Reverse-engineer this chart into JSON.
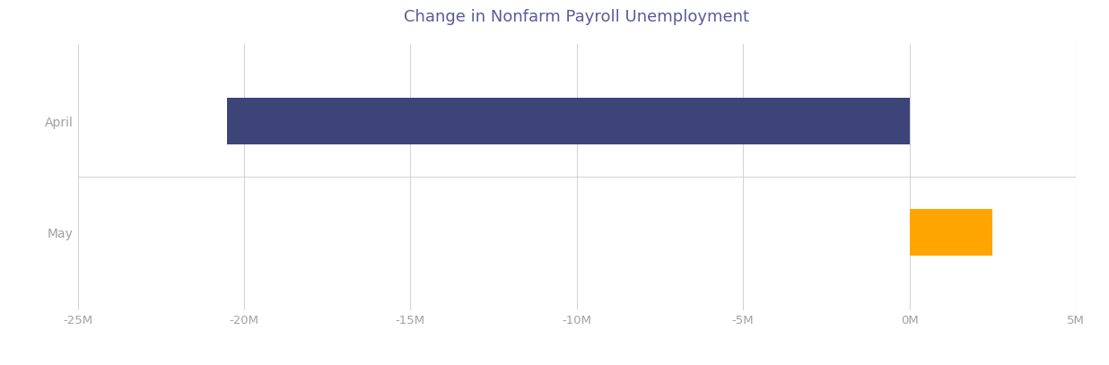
{
  "title": "Change in Nonfarm Payroll Unemployment",
  "title_color": "#5a5a9a",
  "title_fontsize": 13,
  "categories": [
    "May",
    "April"
  ],
  "values": [
    2500000,
    -20500000
  ],
  "bar_colors": [
    "#FFA500",
    "#3d4478"
  ],
  "xlim": [
    -25000000,
    5000000
  ],
  "xticks": [
    -25000000,
    -20000000,
    -15000000,
    -10000000,
    -5000000,
    0,
    5000000
  ],
  "xtick_labels": [
    "-25M",
    "-20M",
    "-15M",
    "-10M",
    "-5M",
    "0M",
    "5M"
  ],
  "background_color": "#ffffff",
  "grid_color": "#d5d5d5",
  "tick_label_color": "#a0a0a0",
  "bar_height": 0.42,
  "figsize": [
    12.36,
    4.07
  ],
  "dpi": 100
}
